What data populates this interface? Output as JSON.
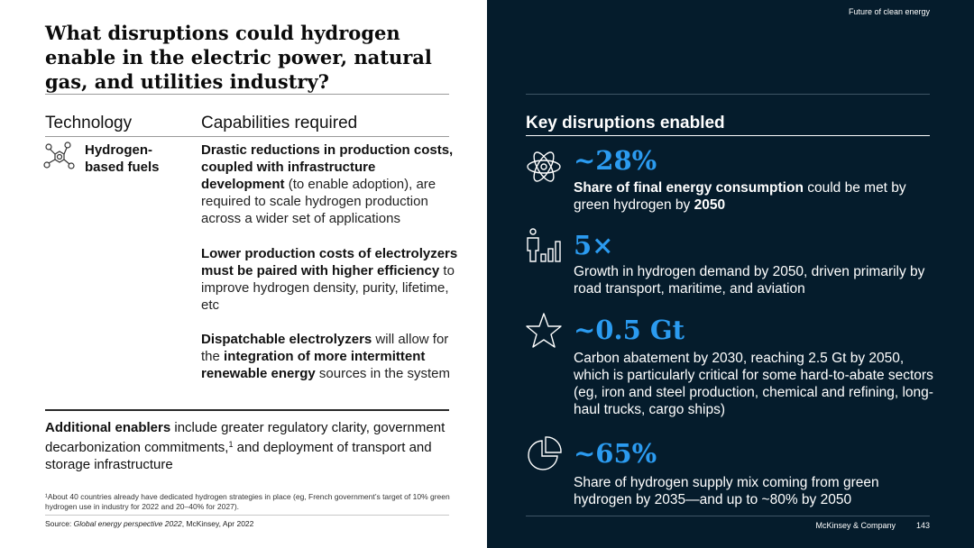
{
  "left": {
    "title": "What disruptions could hydrogen enable in the electric power, natural gas, and utilities industry?",
    "col_technology": "Technology",
    "col_capabilities": "Capabilities required",
    "tech_name_line1": "Hydrogen-",
    "tech_name_line2": "based fuels",
    "cap1": {
      "bold": "Drastic reductions in production costs, coupled with infrastructure development",
      "text": " (to enable adoption), are required to scale hydrogen production across a wider set of applications"
    },
    "cap2": {
      "bold": "Lower production costs of electrolyzers must be paired with higher efficiency",
      "text": " to improve hydrogen density, purity, lifetime, etc"
    },
    "cap3": {
      "bold1": "Dispatchable electrolyzers",
      "text1": " will allow for the ",
      "bold2": "integration of more intermittent renewable energy",
      "text2": " sources in the system"
    },
    "enablers": {
      "bold": "Additional enablers",
      "text1": " include greater regulatory clarity, government decarbonization commitments,",
      "sup": "1",
      "text2": " and deployment of transport and storage infrastructure"
    },
    "footnote": "¹About 40 countries already have dedicated hydrogen strategies in place (eg, French government’s target of 10% green hydrogen use in industry for 2022 and 20–40% for 2027).",
    "source": {
      "prefix": "Source: ",
      "italic": "Global energy perspective 2022",
      "suffix": ", McKinsey, Apr 2022"
    }
  },
  "right": {
    "top_tag": "Future of clean energy",
    "heading": "Key disruptions enabled",
    "items": [
      {
        "icon": "atom-icon",
        "stat": "~28%",
        "bold1": "Share of final energy consumption",
        "text1": " could be met by green hydrogen by ",
        "bold2": "2050",
        "text2": ""
      },
      {
        "icon": "person-growth-icon",
        "stat": "5×",
        "bold1": "",
        "text1": "Growth in hydrogen demand by 2050, driven primarily by road transport, maritime, and aviation",
        "bold2": "",
        "text2": ""
      },
      {
        "icon": "star-icon",
        "stat": "~0.5 Gt",
        "bold1": "",
        "text1": "Carbon abatement by 2030, reaching 2.5 Gt by 2050, which is particularly critical for some hard-to-abate sectors (eg, iron and steel production, chemical and refining, long-haul trucks, cargo ships)",
        "bold2": "",
        "text2": ""
      },
      {
        "icon": "pie-chart-icon",
        "stat": "~65%",
        "bold1": "",
        "text1": "Share of hydrogen supply mix coming from green hydrogen by 2035—and up to ~80% by 2050",
        "bold2": "",
        "text2": ""
      }
    ],
    "footer_company": "McKinsey & Company",
    "footer_page": "143"
  },
  "colors": {
    "navy": "#051c2c",
    "accent_blue": "#2b9bf0"
  }
}
